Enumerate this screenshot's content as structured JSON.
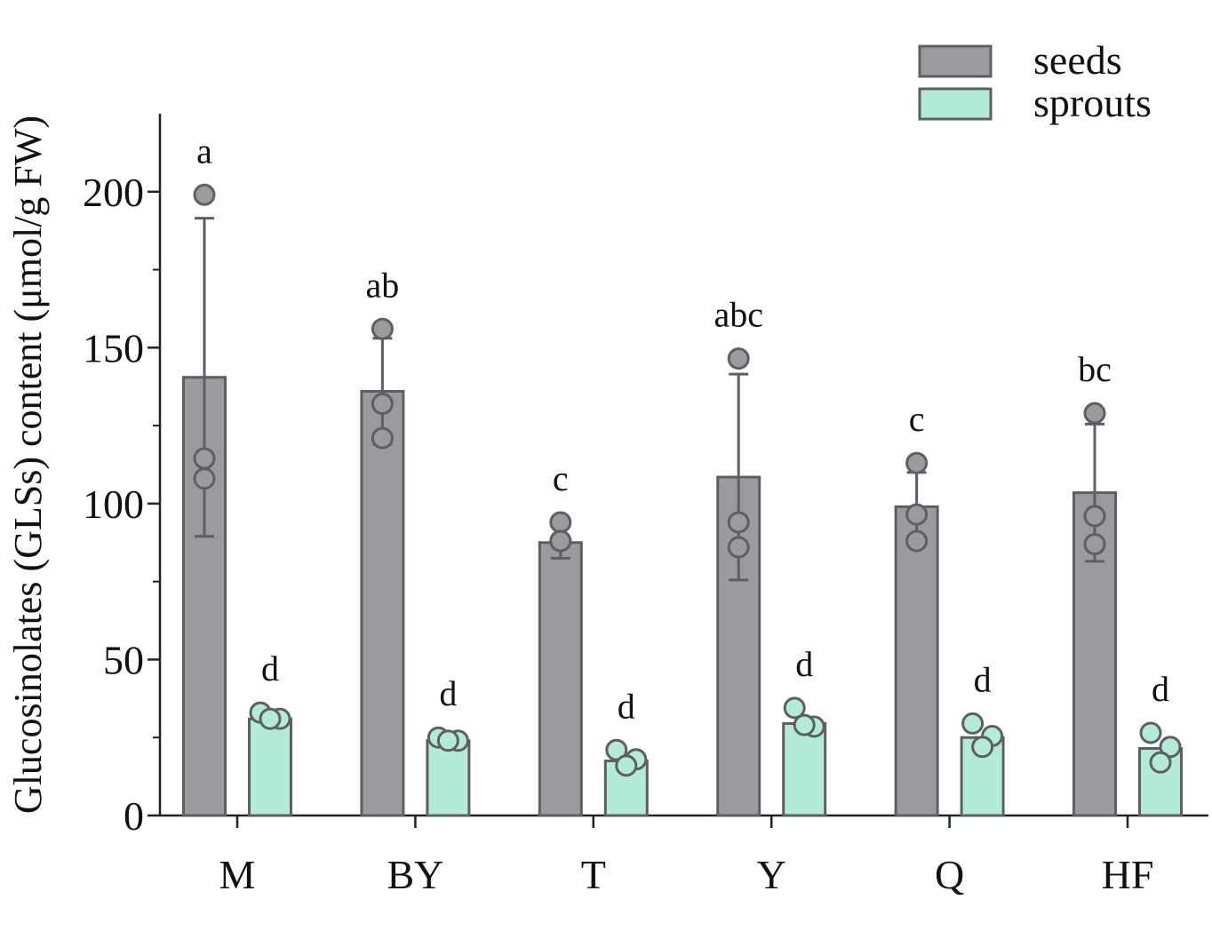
{
  "chart_data": {
    "type": "bar",
    "title": "",
    "xlabel": "",
    "ylabel": "Glucosinolates (GLSs) content (μmol/g FW)",
    "ylim": [
      0,
      225
    ],
    "yticks": [
      0,
      50,
      100,
      150,
      200
    ],
    "ytick_labels": [
      "0",
      "50",
      "100",
      "150",
      "200"
    ],
    "legend_position": "top-right",
    "categories": [
      "M",
      "BY",
      "T",
      "Y",
      "Q",
      "HF"
    ],
    "series": [
      {
        "name": "seeds",
        "color": "#9a9a9f",
        "values": [
          140.5,
          136,
          87.5,
          108.5,
          99,
          103.5
        ],
        "error": [
          51,
          17,
          5,
          33,
          11,
          22
        ],
        "points": [
          [
            199,
            114.5,
            108
          ],
          [
            156,
            132,
            121
          ],
          [
            94,
            88,
            88
          ],
          [
            146.5,
            94,
            86
          ],
          [
            113,
            96.5,
            88
          ],
          [
            129,
            96,
            87
          ]
        ],
        "letters": [
          "a",
          "ab",
          "c",
          "abc",
          "c",
          "bc"
        ]
      },
      {
        "name": "sprouts",
        "color": "#b3ebd7",
        "values": [
          31,
          24,
          17.5,
          29.5,
          25,
          21.5
        ],
        "error": [
          0,
          0,
          0,
          0,
          0,
          0
        ],
        "points": [
          [
            33,
            31,
            31
          ],
          [
            25,
            24,
            24
          ],
          [
            21,
            18,
            16
          ],
          [
            34.5,
            28.5,
            29
          ],
          [
            29.5,
            25.5,
            22
          ],
          [
            26.5,
            22,
            17
          ]
        ],
        "letters": [
          "d",
          "d",
          "d",
          "d",
          "d",
          "d"
        ]
      }
    ]
  }
}
